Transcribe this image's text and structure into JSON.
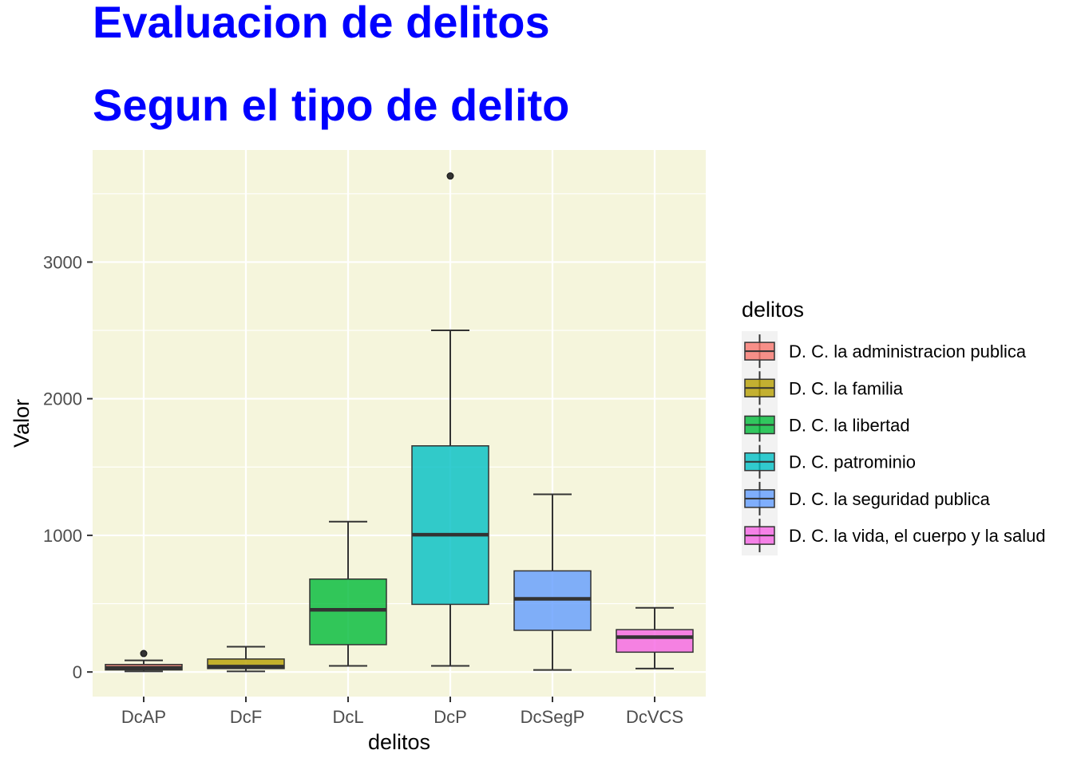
{
  "chart_data": {
    "type": "boxplot",
    "title": "Evaluacion de delitos",
    "subtitle": "Segun el tipo de delito",
    "xlabel": "delitos",
    "ylabel": "Valor",
    "ylim": [
      -180,
      3820
    ],
    "yticks": [
      0,
      1000,
      2000,
      3000
    ],
    "grid": true,
    "background_color": "#f5f5dc",
    "legend": {
      "title": "delitos",
      "placement": "right",
      "entries": [
        {
          "label": "D. C. la administracion publica",
          "color": "#f8766d"
        },
        {
          "label": "D. C. la familia",
          "color": "#b79f00"
        },
        {
          "label": "D. C. la libertad",
          "color": "#00ba38"
        },
        {
          "label": "D. C. patrominio",
          "color": "#00bfc4"
        },
        {
          "label": "D. C. la seguridad publica",
          "color": "#619cff"
        },
        {
          "label": "D. C. la vida, el cuerpo y la salud",
          "color": "#f564e3"
        }
      ]
    },
    "categories": [
      "DcAP",
      "DcF",
      "DcL",
      "DcP",
      "DcSegP",
      "DcVCS"
    ],
    "boxes": [
      {
        "category": "DcAP",
        "min": 5,
        "q1": 15,
        "median": 30,
        "q3": 55,
        "max": 85,
        "outliers": [
          135
        ],
        "color": "#f8766d"
      },
      {
        "category": "DcF",
        "min": 5,
        "q1": 25,
        "median": 40,
        "q3": 95,
        "max": 185,
        "outliers": [],
        "color": "#b79f00"
      },
      {
        "category": "DcL",
        "min": 45,
        "q1": 200,
        "median": 455,
        "q3": 680,
        "max": 1100,
        "outliers": [],
        "color": "#00ba38"
      },
      {
        "category": "DcP",
        "min": 45,
        "q1": 495,
        "median": 1005,
        "q3": 1655,
        "max": 2500,
        "outliers": [
          3630
        ],
        "color": "#00bfc4"
      },
      {
        "category": "DcSegP",
        "min": 15,
        "q1": 305,
        "median": 535,
        "q3": 740,
        "max": 1300,
        "outliers": [],
        "color": "#619cff"
      },
      {
        "category": "DcVCS",
        "min": 25,
        "q1": 145,
        "median": 255,
        "q3": 310,
        "max": 470,
        "outliers": [],
        "color": "#f564e3"
      }
    ]
  }
}
